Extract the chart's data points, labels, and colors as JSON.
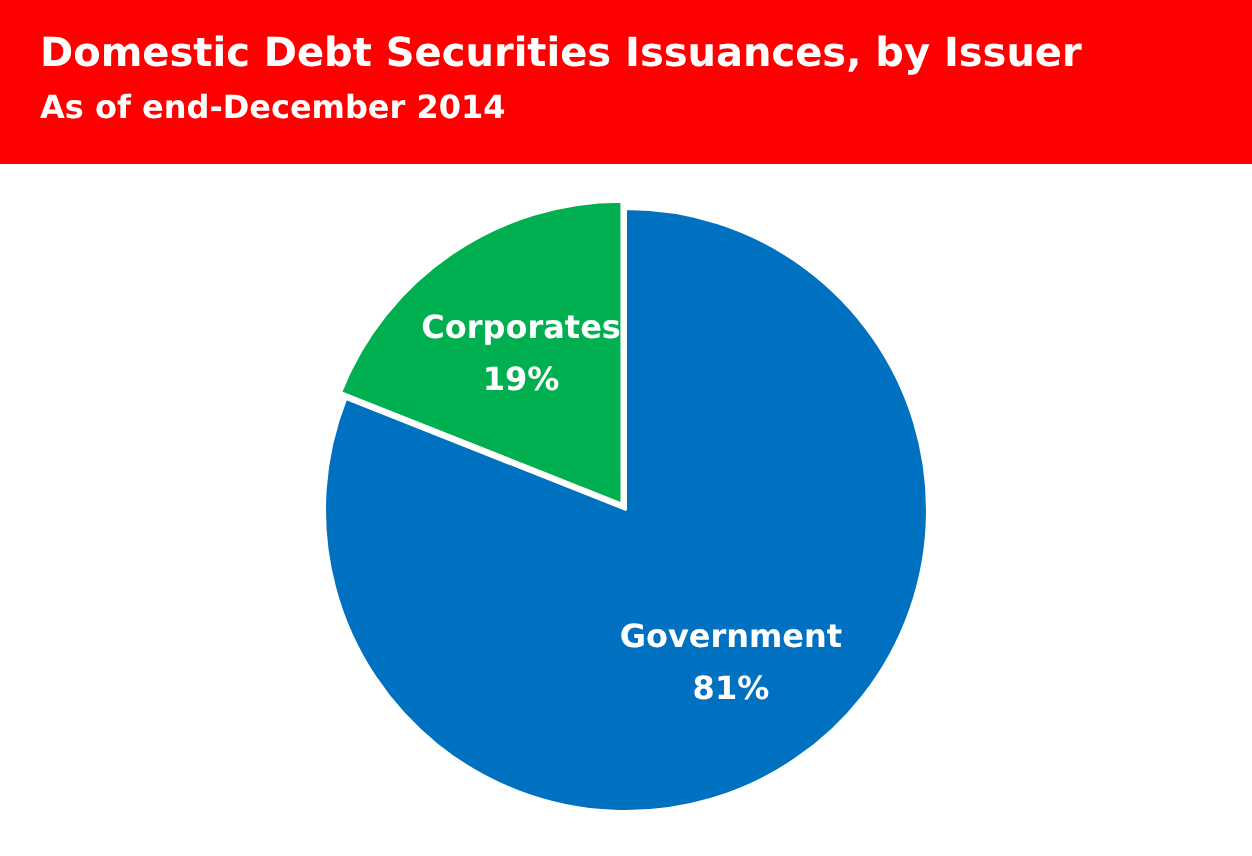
{
  "chart_data": {
    "type": "pie",
    "title": "Domestic Debt Securities Issuances, by Issuer",
    "subtitle": "As of end-December 2014",
    "categories": [
      "Government",
      "Corporates"
    ],
    "values": [
      81,
      19
    ],
    "colors": [
      "#0070c0",
      "#00b050"
    ],
    "value_labels": [
      "81%",
      "19%"
    ],
    "legend": false
  }
}
